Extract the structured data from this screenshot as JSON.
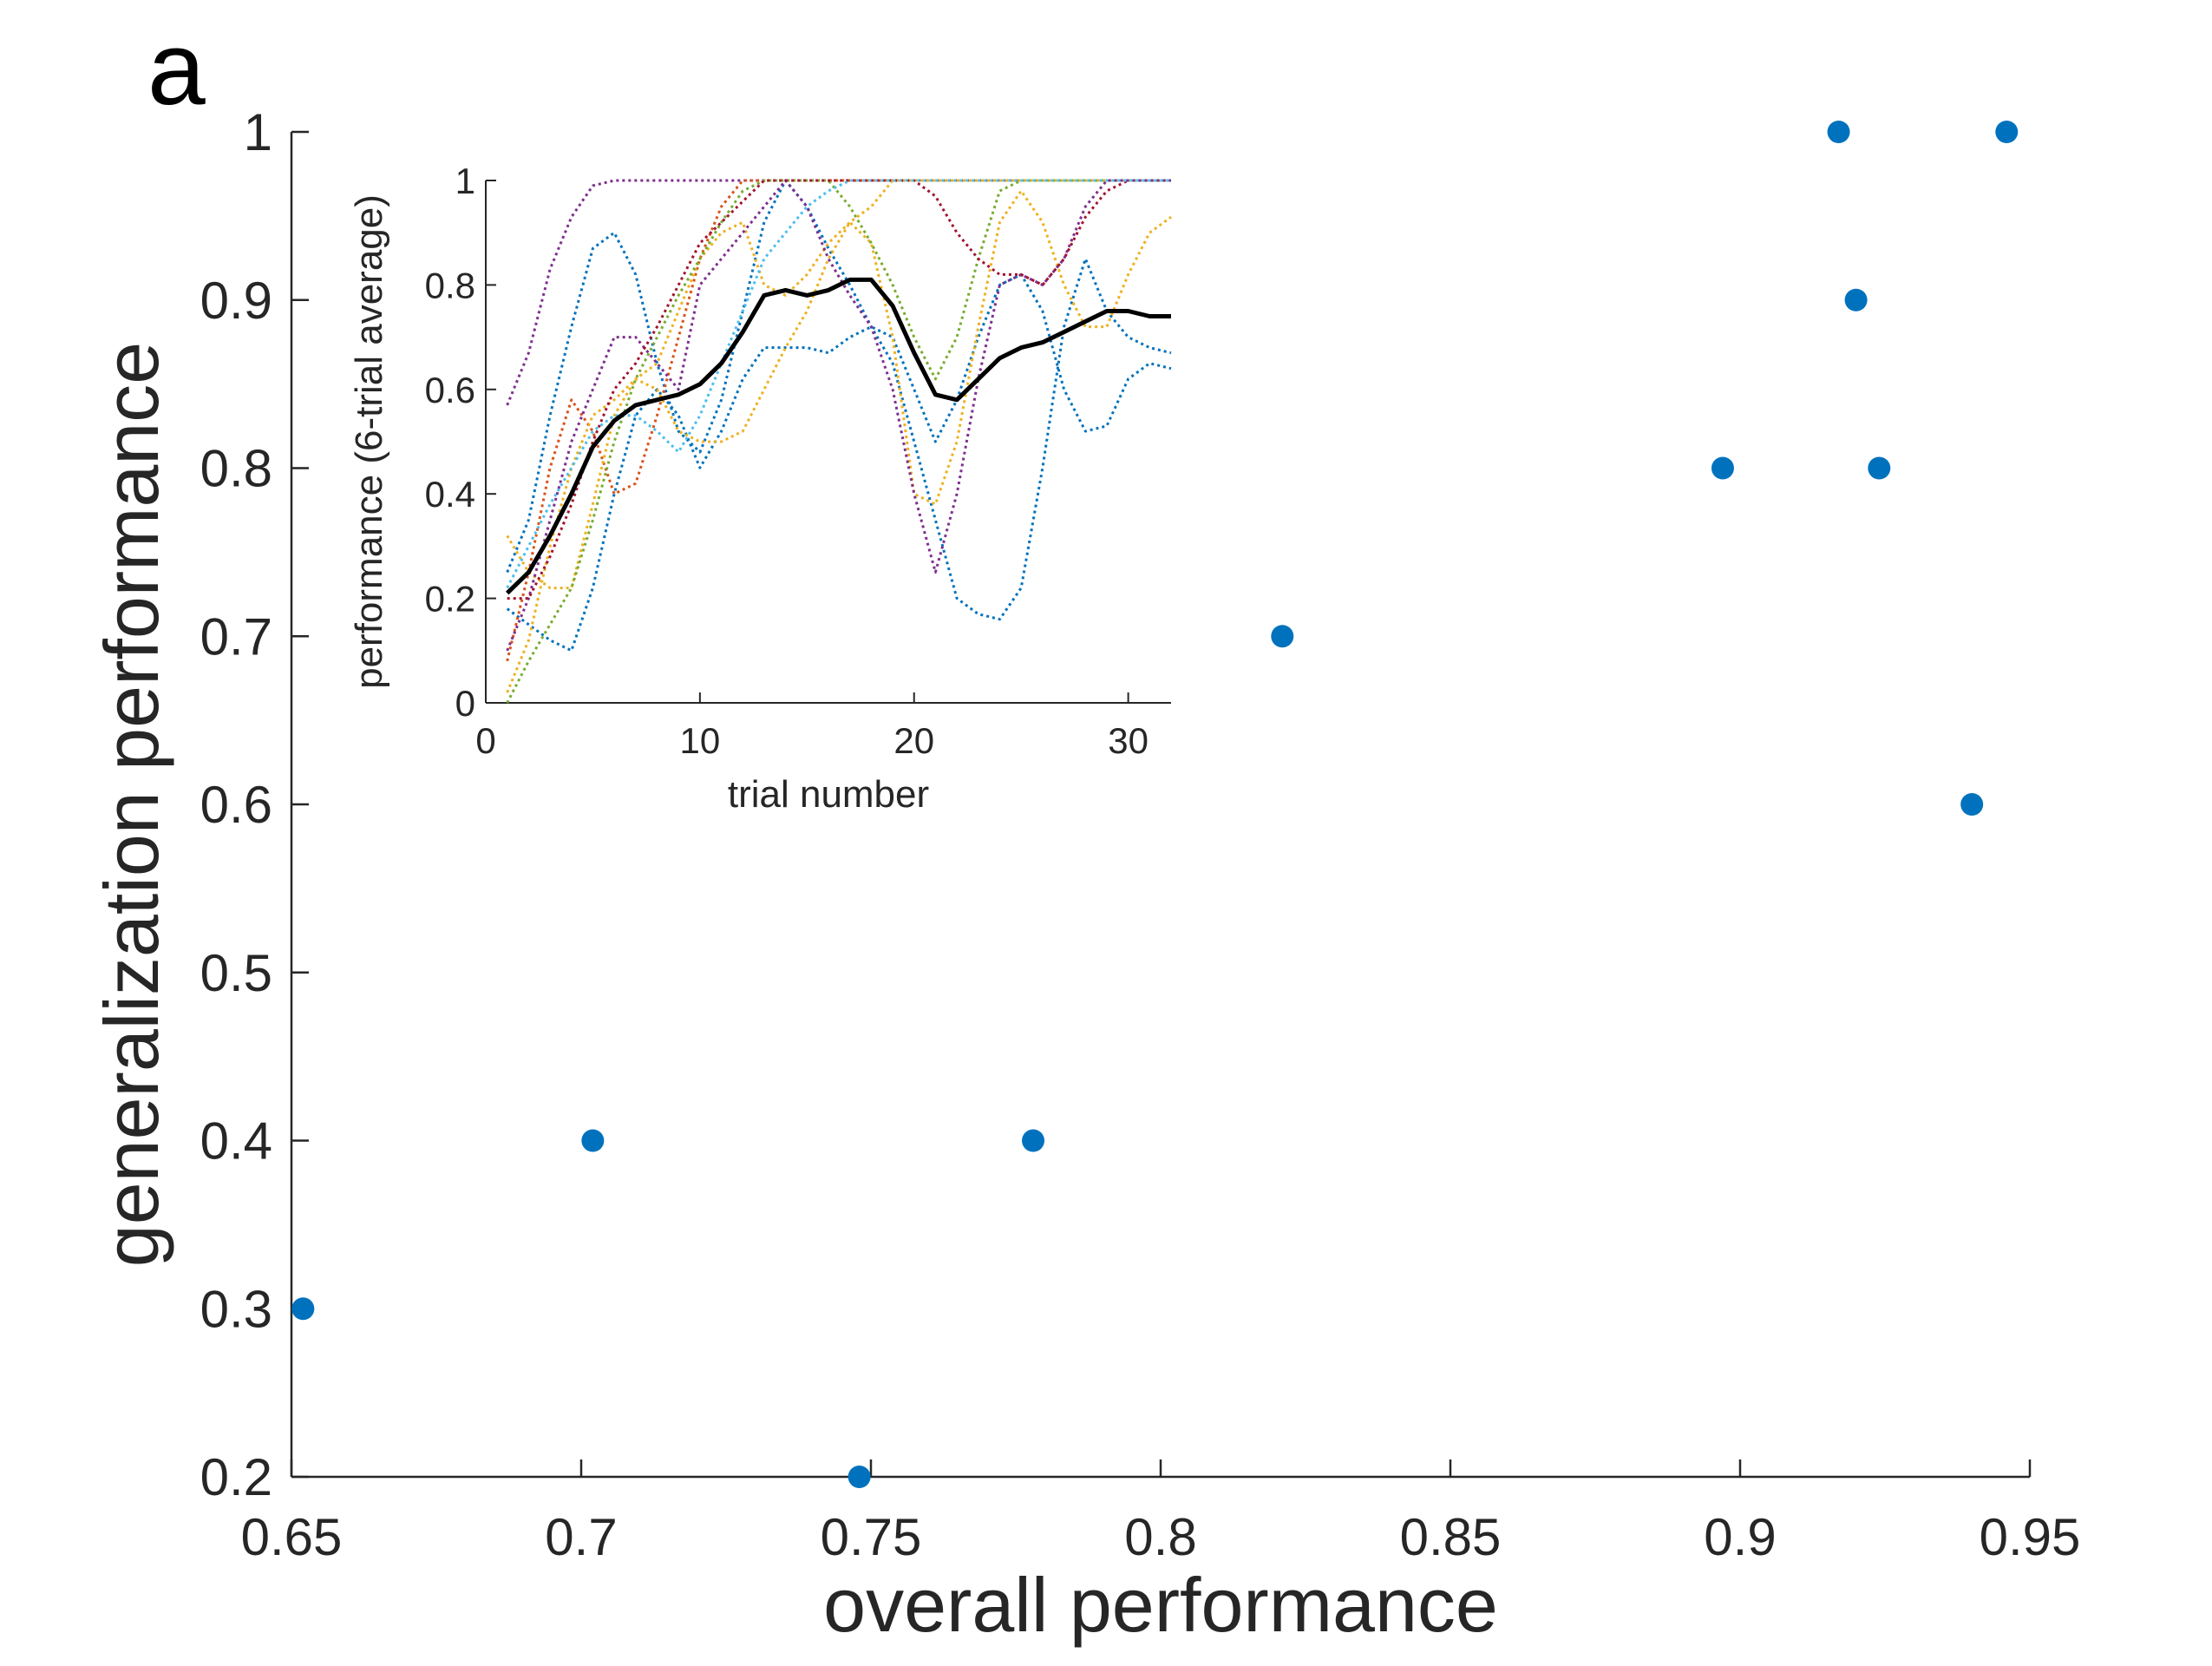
{
  "panel_label": "a",
  "chart_data": [
    {
      "type": "scatter",
      "title": "",
      "xlabel": "overall performance",
      "ylabel": "generalization performance",
      "xlim": [
        0.65,
        0.95
      ],
      "ylim": [
        0.2,
        1.0
      ],
      "xticks": [
        0.65,
        0.7,
        0.75,
        0.8,
        0.85,
        0.9,
        0.95
      ],
      "xtick_labels": [
        "0.65",
        "0.7",
        "0.75",
        "0.8",
        "0.85",
        "0.9",
        "0.95"
      ],
      "yticks": [
        0.2,
        0.3,
        0.4,
        0.5,
        0.6,
        0.7,
        0.8,
        0.9,
        1.0
      ],
      "ytick_labels": [
        "0.2",
        "0.3",
        "0.4",
        "0.5",
        "0.6",
        "0.7",
        "0.8",
        "0.9",
        "1"
      ],
      "grid": false,
      "marker_color": "#0072BD",
      "points": [
        {
          "x": 0.652,
          "y": 0.3
        },
        {
          "x": 0.702,
          "y": 0.4
        },
        {
          "x": 0.748,
          "y": 0.2
        },
        {
          "x": 0.778,
          "y": 0.4
        },
        {
          "x": 0.821,
          "y": 0.7
        },
        {
          "x": 0.897,
          "y": 0.8
        },
        {
          "x": 0.917,
          "y": 1.0
        },
        {
          "x": 0.92,
          "y": 0.9
        },
        {
          "x": 0.924,
          "y": 0.8
        },
        {
          "x": 0.94,
          "y": 0.6
        },
        {
          "x": 0.946,
          "y": 1.0
        }
      ]
    },
    {
      "type": "line",
      "title": "",
      "xlabel": "trial number",
      "ylabel": "performance (6-trial average)",
      "xlim": [
        0,
        32
      ],
      "ylim": [
        0,
        1
      ],
      "xticks": [
        0,
        10,
        20,
        30
      ],
      "xtick_labels": [
        "0",
        "10",
        "20",
        "30"
      ],
      "yticks": [
        0,
        0.2,
        0.4,
        0.6,
        0.8,
        1.0
      ],
      "ytick_labels": [
        "0",
        "0.2",
        "0.4",
        "0.6",
        "0.8",
        "1"
      ],
      "grid": false,
      "series": [
        {
          "style": "dotted",
          "color": "#7E2F8E",
          "x": [
            1,
            2,
            3,
            4,
            5,
            6,
            7,
            8,
            9,
            10,
            11,
            12,
            13,
            14,
            15,
            16,
            17,
            18,
            19,
            20,
            21,
            22,
            23,
            24,
            25,
            26,
            27,
            28,
            29,
            30,
            31,
            32
          ],
          "y": [
            0.57,
            0.67,
            0.83,
            0.93,
            0.99,
            1,
            1,
            1,
            1,
            1,
            1,
            1,
            1,
            1,
            1,
            1,
            1,
            1,
            1,
            1,
            1,
            1,
            1,
            1,
            1,
            1,
            1,
            1,
            1,
            1,
            1,
            1
          ]
        },
        {
          "style": "dotted",
          "color": "#0072BD",
          "x": [
            1,
            2,
            3,
            4,
            5,
            6,
            7,
            8,
            9,
            10,
            11,
            12,
            13,
            14,
            15,
            16,
            17,
            18,
            19,
            20,
            21,
            22,
            23,
            24,
            25,
            26,
            27,
            28,
            29,
            30,
            31,
            32
          ],
          "y": [
            0.25,
            0.35,
            0.55,
            0.72,
            0.87,
            0.9,
            0.82,
            0.65,
            0.52,
            0.48,
            0.58,
            0.75,
            0.92,
            1,
            0.95,
            0.87,
            0.8,
            0.72,
            0.65,
            0.5,
            0.35,
            0.2,
            0.17,
            0.16,
            0.22,
            0.45,
            0.72,
            0.85,
            0.75,
            0.7,
            0.68,
            0.67
          ]
        },
        {
          "style": "dotted",
          "color": "#0072BD",
          "x": [
            1,
            2,
            3,
            4,
            5,
            6,
            7,
            8,
            9,
            10,
            11,
            12,
            13,
            14,
            15,
            16,
            17,
            18,
            19,
            20,
            21,
            22,
            23,
            24,
            25,
            26,
            27,
            28,
            29,
            30,
            31,
            32
          ],
          "y": [
            0.18,
            0.15,
            0.12,
            0.1,
            0.22,
            0.4,
            0.55,
            0.6,
            0.55,
            0.45,
            0.52,
            0.62,
            0.68,
            0.68,
            0.68,
            0.67,
            0.7,
            0.72,
            0.7,
            0.6,
            0.5,
            0.58,
            0.7,
            0.8,
            0.82,
            0.75,
            0.6,
            0.52,
            0.53,
            0.62,
            0.65,
            0.64
          ]
        },
        {
          "style": "dotted",
          "color": "#D95319",
          "x": [
            1,
            2,
            3,
            4,
            5,
            6,
            7,
            8,
            9,
            10,
            11,
            12,
            13,
            14,
            15,
            16,
            17,
            18,
            19,
            20,
            21,
            22,
            23,
            24,
            25,
            26,
            27,
            28,
            29,
            30,
            31,
            32
          ],
          "y": [
            0.08,
            0.25,
            0.45,
            0.58,
            0.52,
            0.4,
            0.42,
            0.55,
            0.7,
            0.85,
            0.95,
            1,
            1,
            1,
            1,
            1,
            1,
            1,
            1,
            1,
            1,
            1,
            1,
            1,
            1,
            1,
            1,
            1,
            1,
            1,
            1,
            1
          ]
        },
        {
          "style": "dotted",
          "color": "#EDB120",
          "x": [
            1,
            2,
            3,
            4,
            5,
            6,
            7,
            8,
            9,
            10,
            11,
            12,
            13,
            14,
            15,
            16,
            17,
            18,
            19,
            20,
            21,
            22,
            23,
            24,
            25,
            26,
            27,
            28,
            29,
            30,
            31,
            32
          ],
          "y": [
            0.32,
            0.25,
            0.22,
            0.22,
            0.38,
            0.55,
            0.62,
            0.6,
            0.52,
            0.5,
            0.5,
            0.52,
            0.6,
            0.68,
            0.75,
            0.85,
            0.92,
            0.88,
            0.7,
            0.4,
            0.38,
            0.5,
            0.72,
            0.92,
            0.98,
            0.92,
            0.8,
            0.72,
            0.72,
            0.82,
            0.9,
            0.93
          ]
        },
        {
          "style": "dotted",
          "color": "#EDB120",
          "x": [
            1,
            2,
            3,
            4,
            5,
            6,
            7,
            8,
            9,
            10,
            11,
            12,
            13,
            14,
            15,
            16,
            17,
            18,
            19,
            20,
            21,
            22,
            23,
            24,
            25,
            26,
            27,
            28,
            29,
            30,
            31,
            32
          ],
          "y": [
            0.02,
            0.12,
            0.3,
            0.45,
            0.55,
            0.58,
            0.62,
            0.65,
            0.75,
            0.85,
            0.9,
            0.92,
            0.8,
            0.78,
            0.82,
            0.88,
            0.92,
            0.95,
            1,
            1,
            1,
            1,
            1,
            1,
            1,
            1,
            1,
            1,
            1,
            1,
            1,
            1
          ]
        },
        {
          "style": "dotted",
          "color": "#77AC30",
          "x": [
            1,
            2,
            3,
            4,
            5,
            6,
            7,
            8,
            9,
            10,
            11,
            12,
            13,
            14,
            15,
            16,
            17,
            18,
            19,
            20,
            21,
            22,
            23,
            24,
            25,
            26,
            27,
            28,
            29,
            30,
            31,
            32
          ],
          "y": [
            0,
            0.08,
            0.15,
            0.22,
            0.35,
            0.5,
            0.62,
            0.7,
            0.78,
            0.85,
            0.92,
            0.98,
            1,
            1,
            1,
            1,
            0.95,
            0.88,
            0.8,
            0.7,
            0.62,
            0.7,
            0.85,
            0.98,
            1,
            1,
            1,
            1,
            1,
            1,
            1,
            1
          ]
        },
        {
          "style": "dotted",
          "color": "#7E2F8E",
          "x": [
            1,
            2,
            3,
            4,
            5,
            6,
            7,
            8,
            9,
            10,
            11,
            12,
            13,
            14,
            15,
            16,
            17,
            18,
            19,
            20,
            21,
            22,
            23,
            24,
            25,
            26,
            27,
            28,
            29,
            30,
            31,
            32
          ],
          "y": [
            0.1,
            0.2,
            0.35,
            0.5,
            0.6,
            0.7,
            0.7,
            0.65,
            0.6,
            0.8,
            0.85,
            0.9,
            0.95,
            1,
            0.95,
            0.85,
            0.78,
            0.72,
            0.6,
            0.4,
            0.25,
            0.4,
            0.62,
            0.8,
            0.82,
            0.8,
            0.85,
            0.95,
            1,
            1,
            1,
            1
          ]
        },
        {
          "style": "dotted",
          "color": "#A2142F",
          "x": [
            1,
            2,
            3,
            4,
            5,
            6,
            7,
            8,
            9,
            10,
            11,
            12,
            13,
            14,
            15,
            16,
            17,
            18,
            19,
            20,
            21,
            22,
            23,
            24,
            25,
            26,
            27,
            28,
            29,
            30,
            31,
            32
          ],
          "y": [
            0.2,
            0.2,
            0.28,
            0.38,
            0.5,
            0.6,
            0.65,
            0.72,
            0.8,
            0.88,
            0.92,
            0.96,
            1,
            1,
            1,
            1,
            1,
            1,
            1,
            1,
            0.97,
            0.9,
            0.85,
            0.82,
            0.82,
            0.8,
            0.85,
            0.93,
            0.98,
            1,
            1,
            1
          ]
        },
        {
          "style": "dotted",
          "color": "#4DBEEE",
          "x": [
            1,
            2,
            3,
            4,
            5,
            6,
            7,
            8,
            9,
            10,
            11,
            12,
            13,
            14,
            15,
            16,
            17,
            18,
            19,
            20,
            21,
            22,
            23,
            24,
            25,
            26,
            27,
            28,
            29,
            30,
            31,
            32
          ],
          "y": [
            0.22,
            0.3,
            0.38,
            0.45,
            0.52,
            0.55,
            0.55,
            0.52,
            0.48,
            0.55,
            0.65,
            0.75,
            0.85,
            0.9,
            0.95,
            0.98,
            1,
            1,
            1,
            1,
            1,
            1,
            1,
            1,
            1,
            1,
            1,
            1,
            1,
            1,
            1,
            1
          ]
        },
        {
          "style": "solid",
          "color": "#000000",
          "x": [
            1,
            2,
            3,
            4,
            5,
            6,
            7,
            8,
            9,
            10,
            11,
            12,
            13,
            14,
            15,
            16,
            17,
            18,
            19,
            20,
            21,
            22,
            23,
            24,
            25,
            26,
            27,
            28,
            29,
            30,
            31,
            32
          ],
          "y": [
            0.21,
            0.25,
            0.32,
            0.4,
            0.49,
            0.54,
            0.57,
            0.58,
            0.59,
            0.61,
            0.65,
            0.71,
            0.78,
            0.79,
            0.78,
            0.79,
            0.81,
            0.81,
            0.76,
            0.67,
            0.59,
            0.58,
            0.62,
            0.66,
            0.68,
            0.69,
            0.71,
            0.73,
            0.75,
            0.75,
            0.74,
            0.74
          ]
        }
      ]
    }
  ]
}
